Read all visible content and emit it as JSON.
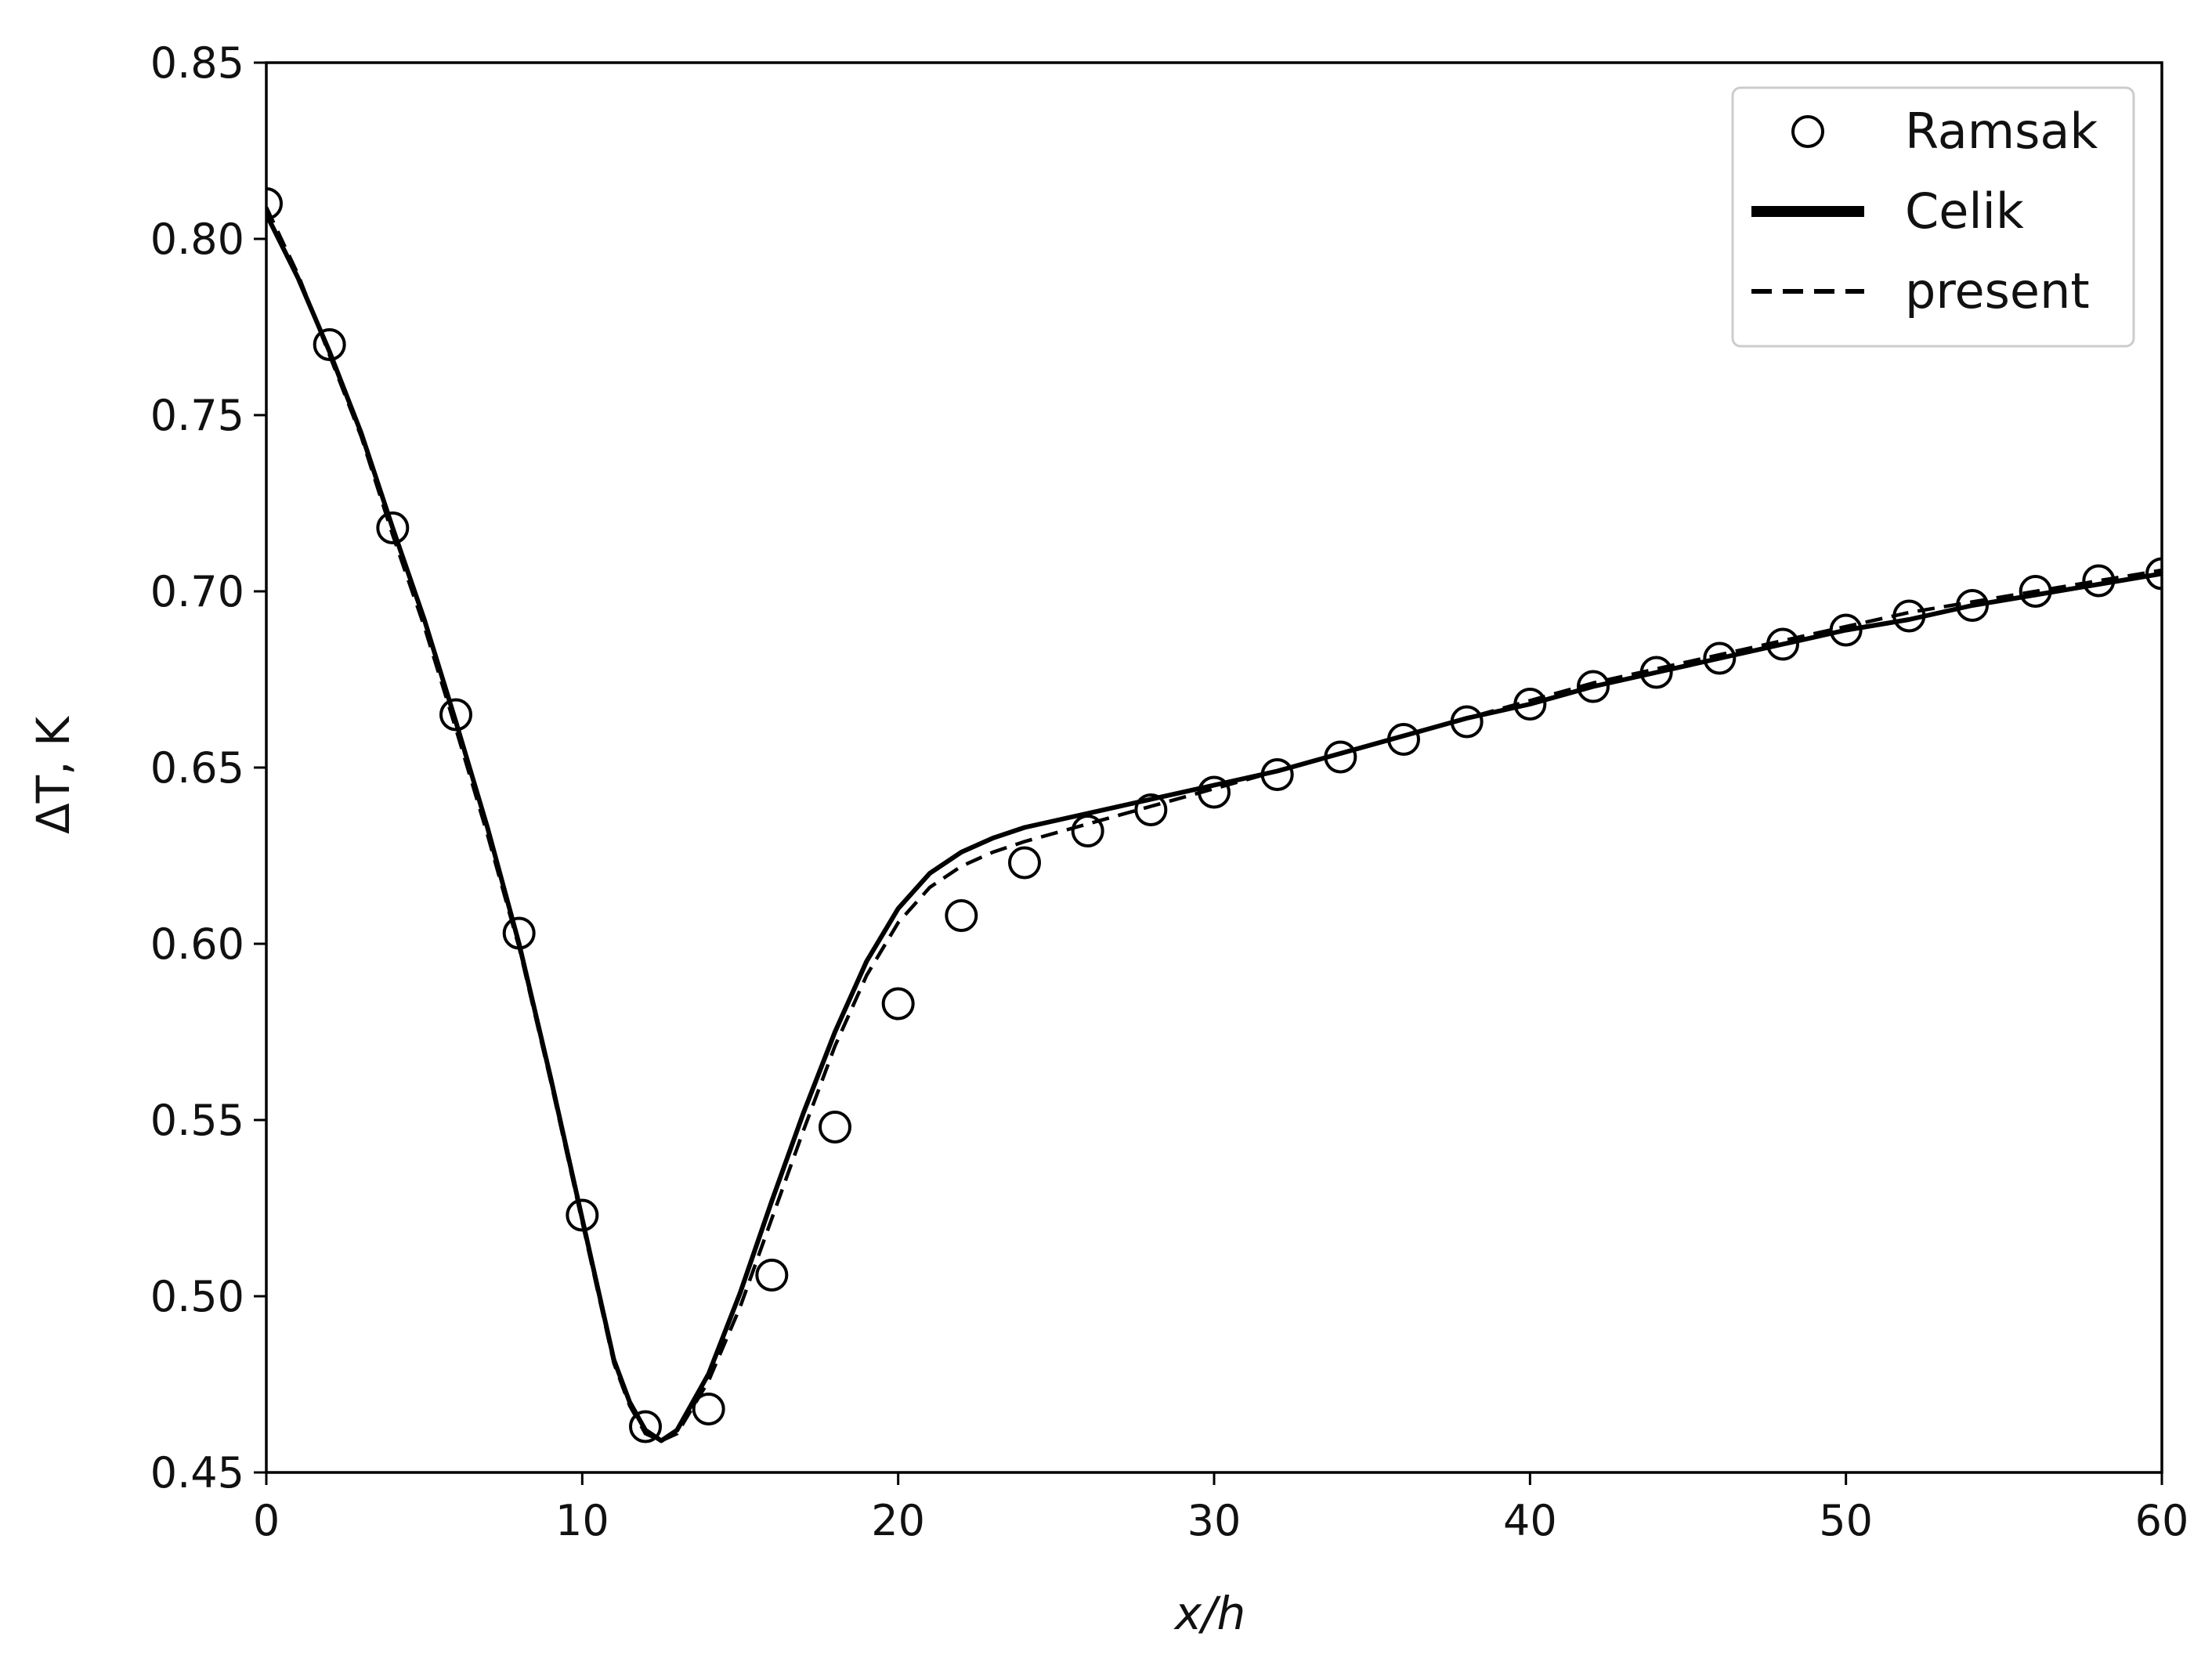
{
  "chart_data": {
    "type": "line",
    "title": "",
    "xlabel": "x/h",
    "ylabel": "ΔT, K",
    "xlim": [
      0,
      60
    ],
    "ylim": [
      0.45,
      0.85
    ],
    "x_ticks": [
      0,
      10,
      20,
      30,
      40,
      50,
      60
    ],
    "x_tick_labels": [
      "0",
      "10",
      "20",
      "30",
      "40",
      "50",
      "60"
    ],
    "y_ticks": [
      0.45,
      0.5,
      0.55,
      0.6,
      0.65,
      0.7,
      0.75,
      0.8,
      0.85
    ],
    "y_tick_labels": [
      "0.45",
      "0.50",
      "0.55",
      "0.60",
      "0.65",
      "0.70",
      "0.75",
      "0.80",
      "0.85"
    ],
    "grid": false,
    "legend_position": "top-right",
    "series": [
      {
        "name": "Ramsak",
        "style": "open-circle-markers",
        "color": "#000000",
        "x": [
          0,
          2,
          4,
          6,
          8,
          10,
          12,
          14,
          16,
          18,
          20,
          22,
          24,
          26,
          28,
          30,
          32,
          34,
          36,
          38,
          40,
          42,
          44,
          46,
          48,
          50,
          52,
          54,
          56,
          58,
          60
        ],
        "y": [
          0.81,
          0.77,
          0.718,
          0.665,
          0.603,
          0.523,
          0.463,
          0.468,
          0.506,
          0.548,
          0.583,
          0.608,
          0.623,
          0.632,
          0.638,
          0.643,
          0.648,
          0.653,
          0.658,
          0.663,
          0.668,
          0.673,
          0.677,
          0.681,
          0.685,
          0.689,
          0.693,
          0.696,
          0.7,
          0.703,
          0.705
        ]
      },
      {
        "name": "Celik",
        "style": "solid",
        "color": "#000000",
        "x": [
          0,
          1,
          2,
          3,
          4,
          5,
          6,
          7,
          8,
          9,
          10,
          11,
          11.5,
          12,
          12.5,
          13,
          14,
          15,
          16,
          17,
          18,
          19,
          20,
          21,
          22,
          23,
          24,
          26,
          28,
          30,
          32,
          34,
          36,
          38,
          40,
          42,
          44,
          46,
          48,
          50,
          52,
          54,
          56,
          58,
          60
        ],
        "y": [
          0.807,
          0.789,
          0.768,
          0.745,
          0.718,
          0.692,
          0.663,
          0.633,
          0.6,
          0.562,
          0.522,
          0.482,
          0.47,
          0.462,
          0.459,
          0.462,
          0.478,
          0.501,
          0.527,
          0.552,
          0.575,
          0.595,
          0.61,
          0.62,
          0.626,
          0.63,
          0.633,
          0.637,
          0.641,
          0.645,
          0.649,
          0.654,
          0.659,
          0.664,
          0.668,
          0.673,
          0.677,
          0.681,
          0.685,
          0.689,
          0.692,
          0.696,
          0.699,
          0.702,
          0.705
        ]
      },
      {
        "name": "present",
        "style": "dashed",
        "color": "#000000",
        "x": [
          0,
          1,
          2,
          3,
          4,
          5,
          6,
          7,
          8,
          9,
          10,
          11,
          11.5,
          12,
          12.5,
          13,
          14,
          15,
          16,
          17,
          18,
          19,
          20,
          21,
          22,
          23,
          24,
          26,
          28,
          30,
          32,
          34,
          36,
          38,
          40,
          42,
          44,
          46,
          48,
          50,
          52,
          54,
          56,
          58,
          60
        ],
        "y": [
          0.809,
          0.79,
          0.767,
          0.744,
          0.716,
          0.69,
          0.661,
          0.631,
          0.599,
          0.561,
          0.521,
          0.481,
          0.469,
          0.461,
          0.459,
          0.461,
          0.476,
          0.497,
          0.522,
          0.547,
          0.571,
          0.591,
          0.606,
          0.616,
          0.622,
          0.626,
          0.629,
          0.634,
          0.639,
          0.644,
          0.649,
          0.654,
          0.659,
          0.664,
          0.669,
          0.674,
          0.678,
          0.682,
          0.686,
          0.69,
          0.694,
          0.697,
          0.7,
          0.703,
          0.706
        ]
      }
    ]
  }
}
